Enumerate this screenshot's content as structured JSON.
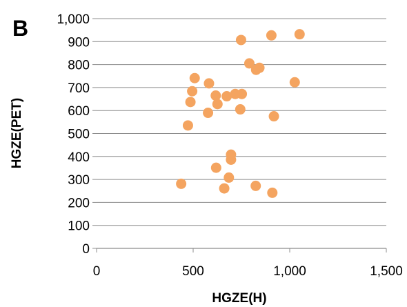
{
  "chart_data": {
    "type": "scatter",
    "panel_label": "B",
    "xlabel": "HGZE(H)",
    "ylabel": "HGZE(PET)",
    "xlim": [
      0,
      1500
    ],
    "ylim": [
      0,
      1000
    ],
    "x_ticks": [
      0,
      500,
      1000,
      1500
    ],
    "x_tick_labels": [
      "0",
      "500",
      "1,000",
      "1,500"
    ],
    "y_ticks": [
      0,
      100,
      200,
      300,
      400,
      500,
      600,
      700,
      800,
      900,
      1000
    ],
    "y_tick_labels": [
      "0",
      "100",
      "200",
      "300",
      "400",
      "500",
      "600",
      "700",
      "800",
      "900",
      "1,000"
    ],
    "grid": "horizontal",
    "legend": "none",
    "marker_color": "#F4A460",
    "points": [
      {
        "x": 748,
        "y": 907
      },
      {
        "x": 905,
        "y": 927
      },
      {
        "x": 1051,
        "y": 932
      },
      {
        "x": 791,
        "y": 805
      },
      {
        "x": 826,
        "y": 777
      },
      {
        "x": 843,
        "y": 786
      },
      {
        "x": 508,
        "y": 741
      },
      {
        "x": 1026,
        "y": 723
      },
      {
        "x": 582,
        "y": 718
      },
      {
        "x": 495,
        "y": 684
      },
      {
        "x": 617,
        "y": 665
      },
      {
        "x": 718,
        "y": 672
      },
      {
        "x": 752,
        "y": 672
      },
      {
        "x": 674,
        "y": 662
      },
      {
        "x": 486,
        "y": 637
      },
      {
        "x": 626,
        "y": 628
      },
      {
        "x": 744,
        "y": 605
      },
      {
        "x": 577,
        "y": 590
      },
      {
        "x": 918,
        "y": 575
      },
      {
        "x": 473,
        "y": 535
      },
      {
        "x": 696,
        "y": 408
      },
      {
        "x": 696,
        "y": 386
      },
      {
        "x": 619,
        "y": 351
      },
      {
        "x": 685,
        "y": 308
      },
      {
        "x": 438,
        "y": 281
      },
      {
        "x": 824,
        "y": 272
      },
      {
        "x": 661,
        "y": 261
      },
      {
        "x": 910,
        "y": 242
      }
    ]
  }
}
